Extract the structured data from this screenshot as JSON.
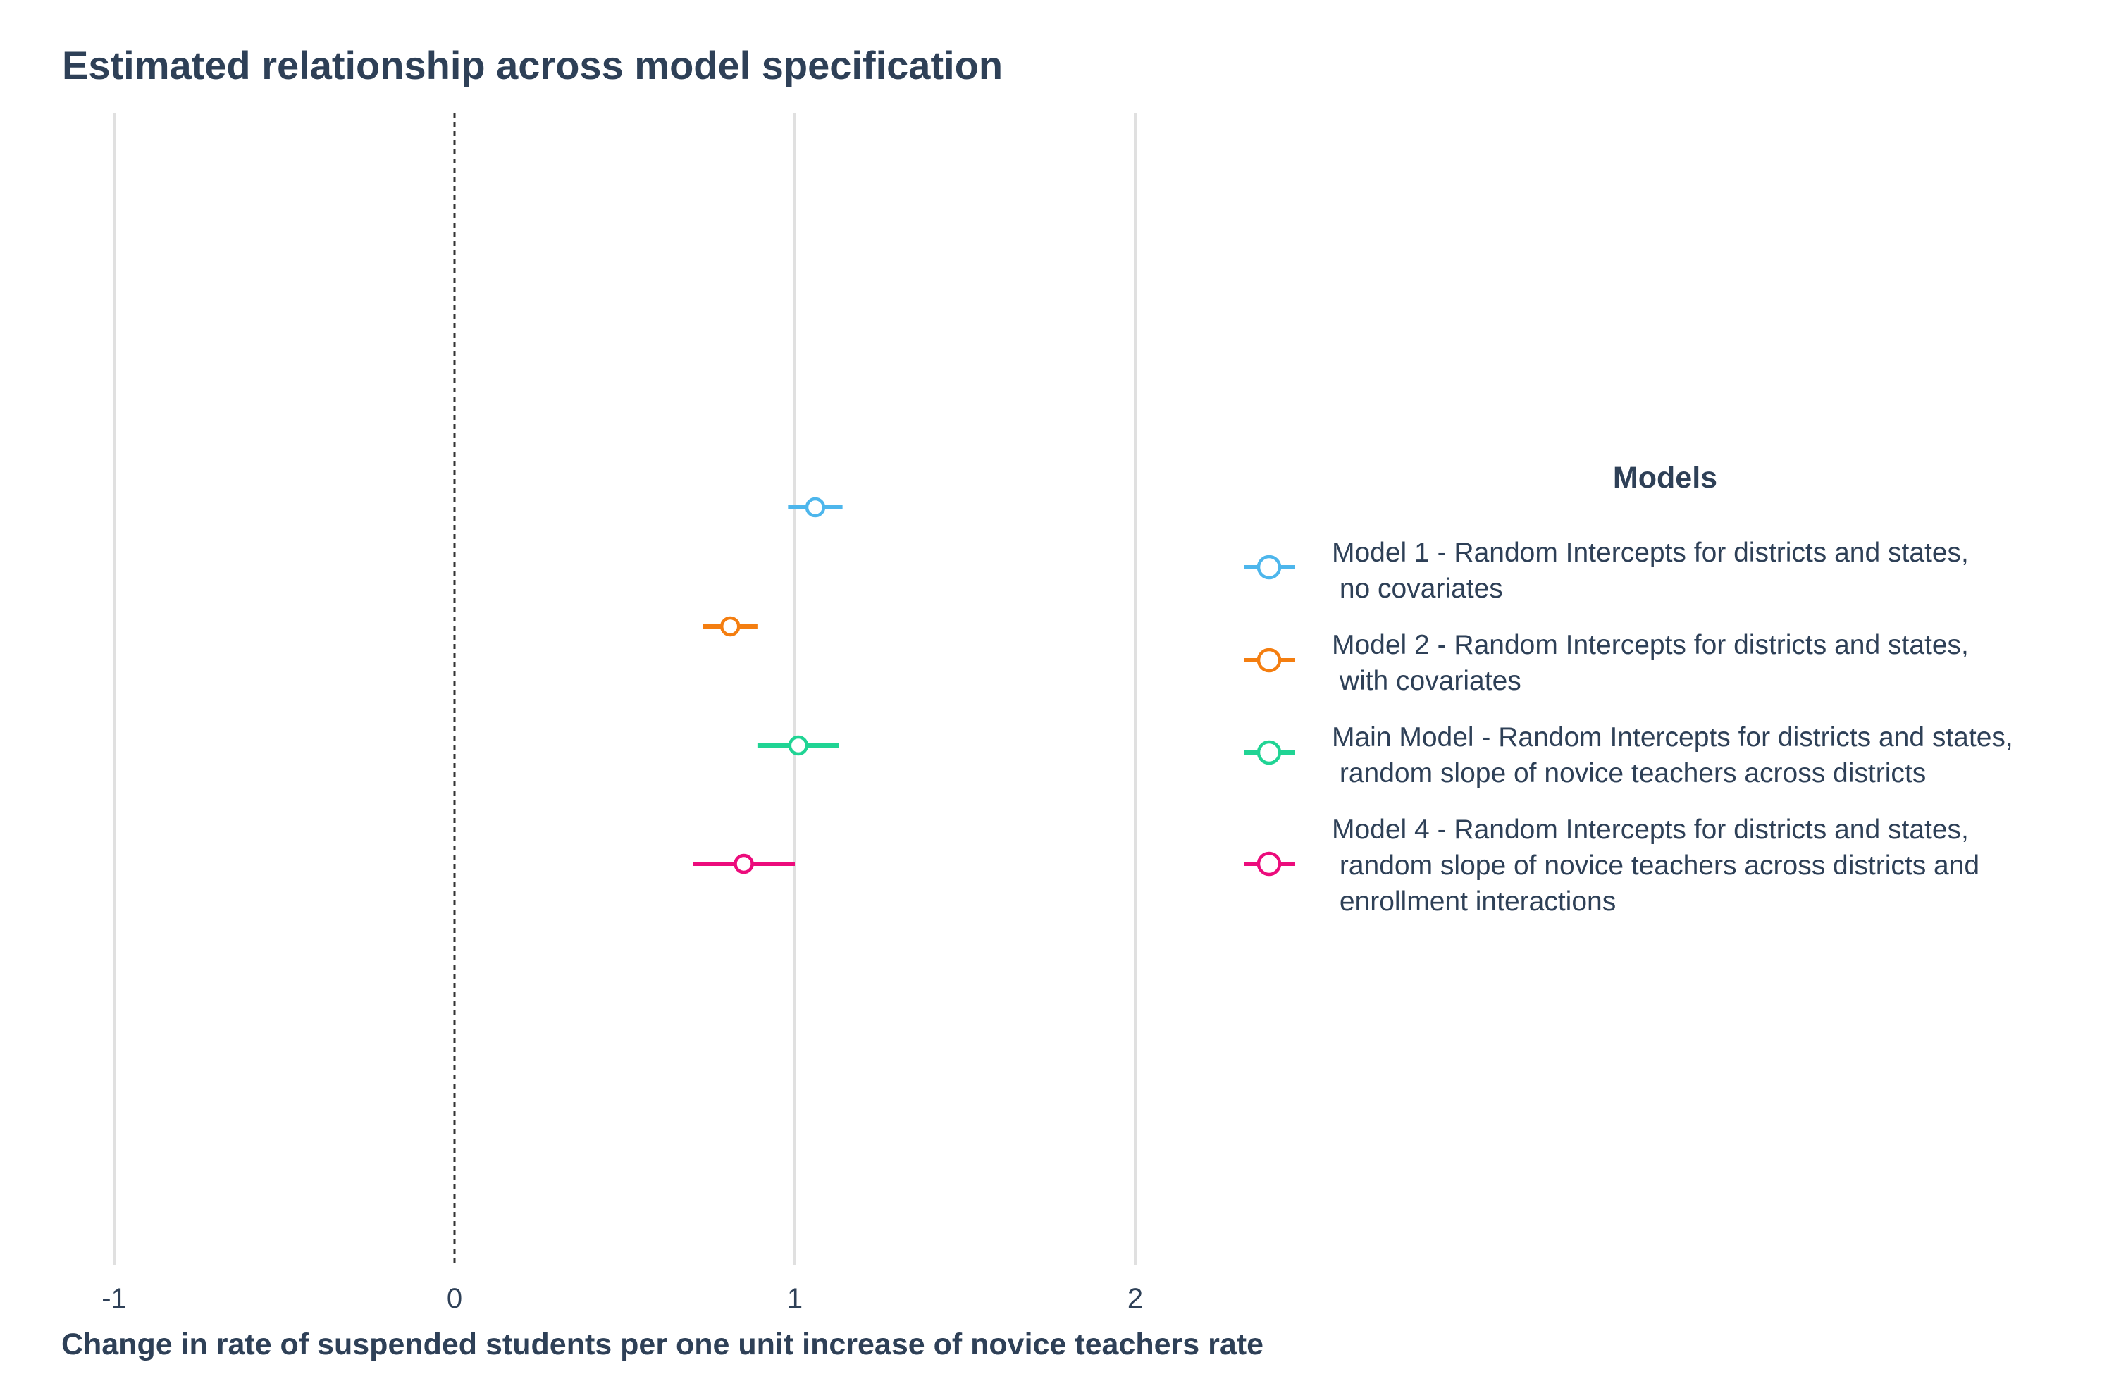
{
  "chart_data": {
    "type": "scatter",
    "title": "Estimated relationship across model specification",
    "xlabel": "Change in rate of suspended students per one unit increase of novice teachers rate",
    "ylabel": "",
    "xlim": [
      -1.3,
      2.4
    ],
    "xticks": [
      "-1",
      "0",
      "1",
      "2"
    ],
    "grid": "vertical",
    "reference_line": 0,
    "legend_title": "Models",
    "legend_position": "right",
    "series": [
      {
        "name": "Model 1 - Random Intercepts for districts and states,\n no covariates",
        "color": "#4db6ec",
        "estimate": 1.06,
        "lower": 0.98,
        "upper": 1.14
      },
      {
        "name": "Model 2 - Random Intercepts for districts and states,\n with covariates",
        "color": "#f47e10",
        "estimate": 0.81,
        "lower": 0.73,
        "upper": 0.89
      },
      {
        "name": "Main Model - Random Intercepts for districts and states,\n random slope of novice teachers across districts",
        "color": "#20d494",
        "estimate": 1.01,
        "lower": 0.89,
        "upper": 1.13
      },
      {
        "name": "Model 4 - Random Intercepts for districts and states,\n random slope of novice teachers across districts and\n enrollment interactions",
        "color": "#ec0c7c",
        "estimate": 0.85,
        "lower": 0.7,
        "upper": 1.0
      }
    ]
  }
}
